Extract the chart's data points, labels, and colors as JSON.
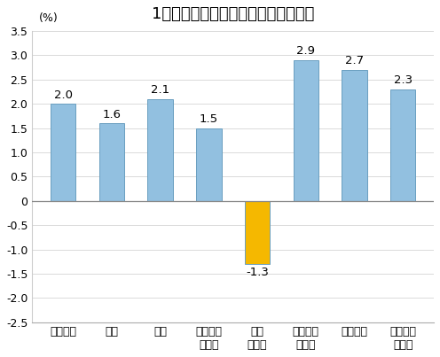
{
  "title": "1月份居民消费价格分类别同比涨跌幅",
  "ylabel_unit": "(%)",
  "categories": [
    "食品烟酒",
    "衣着",
    "居住",
    "生活用品\n及服务",
    "交通\n和通信",
    "教育文化\n和娱乐",
    "医疗保健",
    "其他用品\n和服务"
  ],
  "values": [
    2.0,
    1.6,
    2.1,
    1.5,
    -1.3,
    2.9,
    2.7,
    2.3
  ],
  "bar_colors": [
    "#92c0e0",
    "#92c0e0",
    "#92c0e0",
    "#92c0e0",
    "#f5b800",
    "#92c0e0",
    "#92c0e0",
    "#92c0e0"
  ],
  "ylim": [
    -2.5,
    3.5
  ],
  "title_fontsize": 13,
  "tick_fontsize": 9,
  "label_fontsize": 9,
  "value_fontsize": 9.5,
  "background_color": "#ffffff",
  "grid_color": "#cccccc",
  "bar_edge_color": "#6a9fc0",
  "zero_line_color": "#888888"
}
